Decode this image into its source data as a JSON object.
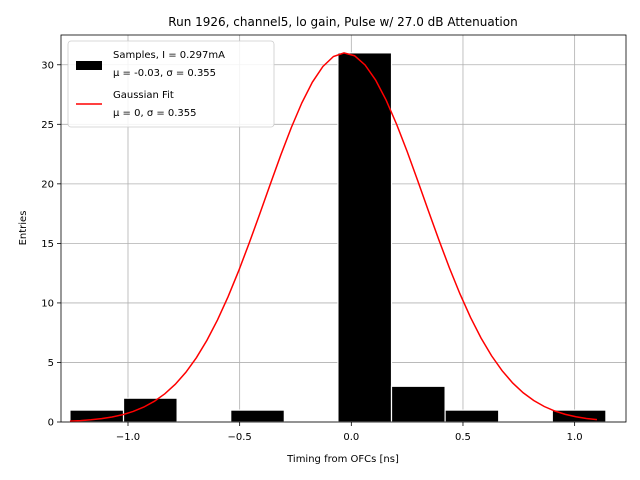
{
  "chart_data": {
    "type": "bar",
    "title": "Run 1926, channel5, lo gain, Pulse w/ 27.0 dB Attenuation",
    "xlabel": "Timing from OFCs [ns]",
    "ylabel": "Entries",
    "xlim": [
      -1.3,
      1.23
    ],
    "ylim": [
      0,
      32.5
    ],
    "xticks": [
      -1.0,
      -0.5,
      0.0,
      0.5,
      1.0
    ],
    "xtick_labels": [
      "−1.0",
      "−0.5",
      "0.0",
      "0.5",
      "1.0"
    ],
    "yticks": [
      0,
      5,
      10,
      15,
      20,
      25,
      30
    ],
    "ytick_labels": [
      "0",
      "5",
      "10",
      "15",
      "20",
      "25",
      "30"
    ],
    "grid": true,
    "legend_position": "top-left",
    "histogram": {
      "name": "Samples, I = 0.297mA",
      "stats": "μ = -0.03, σ = 0.355",
      "color": "#000000",
      "bins": [
        {
          "x0": -1.26,
          "x1": -1.02,
          "count": 1
        },
        {
          "x0": -1.02,
          "x1": -0.78,
          "count": 2
        },
        {
          "x0": -0.78,
          "x1": -0.54,
          "count": 0
        },
        {
          "x0": -0.54,
          "x1": -0.3,
          "count": 1
        },
        {
          "x0": -0.3,
          "x1": -0.06,
          "count": 0
        },
        {
          "x0": -0.06,
          "x1": 0.18,
          "count": 31
        },
        {
          "x0": 0.18,
          "x1": 0.42,
          "count": 3
        },
        {
          "x0": 0.42,
          "x1": 0.66,
          "count": 1
        },
        {
          "x0": 0.66,
          "x1": 0.9,
          "count": 0
        },
        {
          "x0": 0.9,
          "x1": 1.14,
          "count": 1
        }
      ]
    },
    "fit": {
      "name": "Gaussian Fit",
      "stats": "μ = 0, σ = 0.355",
      "color": "#ff0000",
      "amplitude": 31.0,
      "mu": -0.03,
      "sigma": 0.355,
      "x_range": [
        -1.26,
        1.1
      ]
    }
  }
}
